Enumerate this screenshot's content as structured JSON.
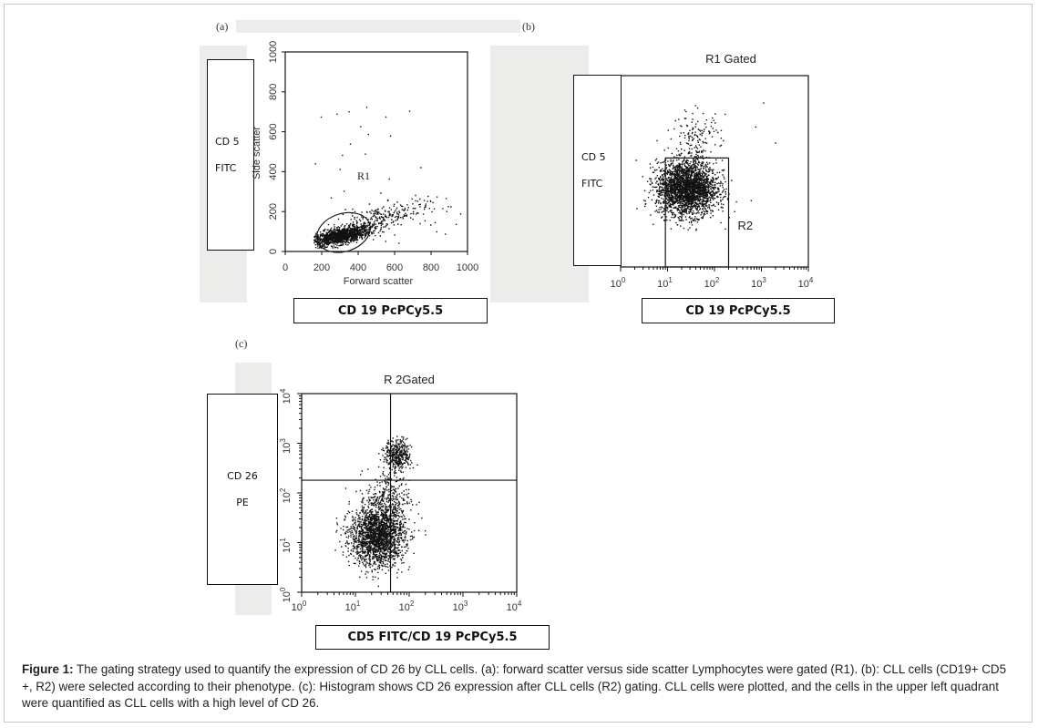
{
  "panels": {
    "a": {
      "letter": "(a)",
      "y_axis_title": "Side scatter",
      "x_axis_title": "Forward scatter",
      "gate_label": "R1",
      "y_ticks": [
        "0",
        "200",
        "400",
        "600",
        "800",
        "1000"
      ],
      "x_ticks": [
        "0",
        "200",
        "400",
        "600",
        "800",
        "1000"
      ],
      "left_label": [
        "CD 5",
        "FITC"
      ],
      "bottom_label": "CD 19  PcPCy5.5"
    },
    "b": {
      "letter": "(b)",
      "title": "R1 Gated",
      "gate_label": "R2",
      "x_ticks": [
        "10",
        "10",
        "10",
        "10",
        "10"
      ],
      "x_tick_exponents": [
        "0",
        "1",
        "2",
        "3",
        "4"
      ],
      "left_label": [
        "CD 5",
        "FITC"
      ],
      "bottom_label": "CD 19  PcPCy5.5"
    },
    "c": {
      "letter": "(c)",
      "title": "R 2Gated",
      "x_ticks": [
        "10",
        "10",
        "10",
        "10",
        "10"
      ],
      "x_tick_exponents": [
        "0",
        "1",
        "2",
        "3",
        "4"
      ],
      "y_ticks": [
        "10",
        "10",
        "10",
        "10",
        "10"
      ],
      "y_tick_exponents": [
        "0",
        "1",
        "2",
        "3",
        "4"
      ],
      "left_label": [
        "CD 26",
        "PE"
      ],
      "bottom_label": "CD5 FITC/CD 19 PcPCy5.5"
    }
  },
  "caption": {
    "lead": "Figure 1:",
    "text": " The gating strategy used to quantify the expression of CD 26 by CLL cells. (a): forward scatter versus side scatter Lymphocytes were gated (R1). (b): CLL cells (CD19+ CD5 +, R2) were selected according to their phenotype. (c): Histogram shows CD 26 expression after CLL cells (R2) gating. CLL cells were plotted, and the cells in the upper left quadrant were quantified as CLL cells with a high level of CD 26."
  },
  "chart_data": [
    {
      "type": "scatter",
      "panel": "a",
      "xlabel": "Forward scatter",
      "ylabel": "Side scatter",
      "xlim": [
        0,
        1000
      ],
      "ylim": [
        0,
        1000
      ],
      "x_ticks": [
        0,
        200,
        400,
        600,
        800,
        1000
      ],
      "y_ticks": [
        0,
        200,
        400,
        600,
        800,
        1000
      ],
      "gates": [
        {
          "name": "R1",
          "shape": "ellipse",
          "center": [
            320,
            95
          ],
          "x_extent": [
            200,
            500
          ],
          "y_extent": [
            30,
            220
          ]
        }
      ],
      "populations": [
        {
          "center": [
            300,
            80
          ],
          "spread": [
            80,
            25
          ],
          "count": 1300
        },
        {
          "center": [
            520,
            170
          ],
          "spread": [
            130,
            40
          ],
          "count": 260
        }
      ]
    },
    {
      "type": "scatter",
      "panel": "b",
      "title": "R1 Gated",
      "x_scale": "log",
      "y_scale": "log",
      "xlim": [
        1,
        10000
      ],
      "ylim": [
        1,
        10000
      ],
      "x_ticks": [
        1,
        10,
        100,
        1000,
        10000
      ],
      "gates": [
        {
          "name": "R2",
          "shape": "rectangle",
          "x_extent": [
            9,
            200
          ],
          "y_extent": [
            1,
            190
          ]
        }
      ],
      "populations": [
        {
          "center": [
            25,
            45
          ],
          "spread_decades": [
            0.32,
            0.28
          ],
          "count": 2600
        },
        {
          "center": [
            40,
            400
          ],
          "spread_decades": [
            0.25,
            0.35
          ],
          "count": 160
        }
      ]
    },
    {
      "type": "scatter",
      "panel": "c",
      "title": "R 2Gated",
      "x_scale": "log",
      "y_scale": "log",
      "xlim": [
        1,
        10000
      ],
      "ylim": [
        1,
        10000
      ],
      "x_ticks": [
        1,
        10,
        100,
        1000,
        10000
      ],
      "y_ticks": [
        1,
        10,
        100,
        1000,
        10000
      ],
      "quadrant_lines": {
        "x": 45,
        "y": 180
      },
      "populations": [
        {
          "center": [
            25,
            14
          ],
          "spread_decades": [
            0.25,
            0.3
          ],
          "count": 2000
        },
        {
          "center": [
            60,
            600
          ],
          "spread_decades": [
            0.12,
            0.15
          ],
          "count": 380
        },
        {
          "center": [
            40,
            80
          ],
          "spread_decades": [
            0.2,
            0.3
          ],
          "count": 300
        }
      ]
    }
  ]
}
